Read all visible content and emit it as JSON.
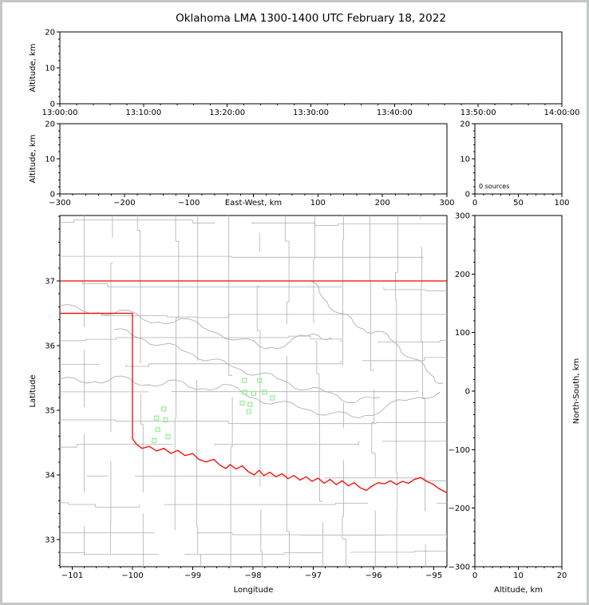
{
  "title": "Oklahoma LMA 1300-1400 UTC February 18, 2022",
  "colors": {
    "state_border": "#ff0000",
    "county_lines": "#b0b0b0",
    "station_marker": "#90ee90",
    "axis": "#000000",
    "frame": "#c3c7c7"
  },
  "panels": {
    "time_height": {
      "ylabel": "Altitude, km",
      "xlim": [
        0,
        3600
      ],
      "ylim": [
        0,
        20
      ],
      "xminor": 120,
      "yminor": 2,
      "xticks": [
        {
          "v": 0,
          "t": "13:00:00"
        },
        {
          "v": 600,
          "t": "13:10:00"
        },
        {
          "v": 1200,
          "t": "13:20:00"
        },
        {
          "v": 1800,
          "t": "13:30:00"
        },
        {
          "v": 2400,
          "t": "13:40:00"
        },
        {
          "v": 3000,
          "t": "13:50:00"
        },
        {
          "v": 3600,
          "t": "14:00:00"
        }
      ],
      "yticks": [
        {
          "v": 0,
          "t": "0"
        },
        {
          "v": 10,
          "t": "10"
        },
        {
          "v": 20,
          "t": "20"
        }
      ]
    },
    "ew_height": {
      "ylabel": "Altitude, km",
      "inline_xlabel": "East-West, km",
      "xlim": [
        -300,
        300
      ],
      "ylim": [
        0,
        20
      ],
      "xminor": 20,
      "yminor": 2,
      "xticks": [
        {
          "v": -300,
          "t": "−300"
        },
        {
          "v": -200,
          "t": "−200"
        },
        {
          "v": -100,
          "t": "−100"
        },
        {
          "v": 0,
          "t": ""
        },
        {
          "v": 100,
          "t": "100"
        },
        {
          "v": 200,
          "t": "200"
        },
        {
          "v": 300,
          "t": "300"
        }
      ],
      "yticks": [
        {
          "v": 0,
          "t": "0"
        },
        {
          "v": 10,
          "t": "10"
        },
        {
          "v": 20,
          "t": "20"
        }
      ]
    },
    "histogram": {
      "annotation": "0 sources",
      "xlim": [
        0,
        100
      ],
      "ylim": [
        0,
        20
      ],
      "xminor": 10,
      "yminor": 2,
      "xticks": [
        {
          "v": 0,
          "t": "0"
        },
        {
          "v": 50,
          "t": "50"
        },
        {
          "v": 100,
          "t": "100"
        }
      ],
      "yticks": [
        {
          "v": 0,
          "t": "0"
        },
        {
          "v": 10,
          "t": "10"
        },
        {
          "v": 20,
          "t": "20"
        }
      ]
    },
    "map": {
      "xlabel": "Longitude",
      "ylabel": "Latitude",
      "xlim": [
        -101.205,
        -94.783
      ],
      "ylim": [
        32.58,
        38.012
      ],
      "xminor": 0.2,
      "yminor": 0.2,
      "xticks": [
        {
          "v": -101,
          "t": "−101"
        },
        {
          "v": -100,
          "t": "−100"
        },
        {
          "v": -99,
          "t": "−99"
        },
        {
          "v": -98,
          "t": "−98"
        },
        {
          "v": -97,
          "t": "−97"
        },
        {
          "v": -96,
          "t": "−96"
        },
        {
          "v": -95,
          "t": "−95"
        }
      ],
      "yticks": [
        {
          "v": 33,
          "t": "33"
        },
        {
          "v": 34,
          "t": "34"
        },
        {
          "v": 35,
          "t": "35"
        },
        {
          "v": 36,
          "t": "36"
        },
        {
          "v": 37,
          "t": "37"
        }
      ]
    },
    "ns_height": {
      "xlabel": "Altitude, km",
      "ylabel_right": "North-South, km",
      "xlim": [
        0,
        20
      ],
      "ylim": [
        -300,
        300
      ],
      "xminor": 2,
      "yminor": 20,
      "xticks": [
        {
          "v": 0,
          "t": "0"
        },
        {
          "v": 10,
          "t": "10"
        },
        {
          "v": 20,
          "t": "20"
        }
      ],
      "yticks": [
        {
          "v": 300,
          "t": "300"
        },
        {
          "v": 200,
          "t": "200"
        },
        {
          "v": 100,
          "t": "100"
        },
        {
          "v": 0,
          "t": "0"
        },
        {
          "v": -100,
          "t": "−100"
        },
        {
          "v": -200,
          "t": "−200"
        },
        {
          "v": -300,
          "t": "−300"
        }
      ]
    }
  },
  "map_features": {
    "state_border": {
      "north": [
        [
          -101.205,
          37.0
        ],
        [
          -94.783,
          37.0
        ]
      ],
      "panhandle": [
        [
          -101.205,
          36.5
        ],
        [
          -100.0,
          36.5
        ],
        [
          -100.0,
          34.56
        ]
      ],
      "red_river": [
        [
          -100.0,
          34.56
        ],
        [
          -99.93,
          34.47
        ],
        [
          -99.84,
          34.41
        ],
        [
          -99.72,
          34.44
        ],
        [
          -99.6,
          34.37
        ],
        [
          -99.48,
          34.41
        ],
        [
          -99.36,
          34.33
        ],
        [
          -99.25,
          34.38
        ],
        [
          -99.13,
          34.3
        ],
        [
          -99.0,
          34.33
        ],
        [
          -98.9,
          34.24
        ],
        [
          -98.78,
          34.2
        ],
        [
          -98.65,
          34.24
        ],
        [
          -98.55,
          34.15
        ],
        [
          -98.45,
          34.1
        ],
        [
          -98.38,
          34.16
        ],
        [
          -98.28,
          34.09
        ],
        [
          -98.18,
          34.14
        ],
        [
          -98.08,
          34.05
        ],
        [
          -97.98,
          34.0
        ],
        [
          -97.9,
          34.07
        ],
        [
          -97.82,
          33.99
        ],
        [
          -97.72,
          34.04
        ],
        [
          -97.62,
          33.97
        ],
        [
          -97.52,
          34.02
        ],
        [
          -97.42,
          33.94
        ],
        [
          -97.32,
          33.99
        ],
        [
          -97.22,
          33.92
        ],
        [
          -97.12,
          33.97
        ],
        [
          -97.02,
          33.9
        ],
        [
          -96.92,
          33.95
        ],
        [
          -96.82,
          33.87
        ],
        [
          -96.72,
          33.93
        ],
        [
          -96.62,
          33.85
        ],
        [
          -96.52,
          33.91
        ],
        [
          -96.42,
          33.83
        ],
        [
          -96.32,
          33.88
        ],
        [
          -96.22,
          33.8
        ],
        [
          -96.12,
          33.76
        ],
        [
          -96.02,
          33.83
        ],
        [
          -95.92,
          33.88
        ],
        [
          -95.82,
          33.86
        ],
        [
          -95.72,
          33.91
        ],
        [
          -95.62,
          33.85
        ],
        [
          -95.52,
          33.9
        ],
        [
          -95.42,
          33.87
        ],
        [
          -95.32,
          33.93
        ],
        [
          -95.22,
          33.96
        ],
        [
          -95.12,
          33.9
        ],
        [
          -95.02,
          33.86
        ],
        [
          -94.92,
          33.79
        ],
        [
          -94.82,
          33.74
        ],
        [
          -94.77,
          33.72
        ]
      ]
    },
    "rivers": {
      "cimarron": [
        [
          -101.205,
          36.62
        ],
        [
          -100.7,
          36.5
        ],
        [
          -100.2,
          36.55
        ],
        [
          -99.7,
          36.35
        ],
        [
          -99.2,
          36.42
        ],
        [
          -98.7,
          36.22
        ],
        [
          -98.2,
          36.1
        ],
        [
          -97.8,
          35.95
        ],
        [
          -97.4,
          36.05
        ],
        [
          -97.0,
          36.18
        ],
        [
          -96.7,
          36.12
        ]
      ],
      "north_canadian": [
        [
          -100.3,
          36.25
        ],
        [
          -99.9,
          36.12
        ],
        [
          -99.5,
          36.02
        ],
        [
          -99.1,
          35.9
        ],
        [
          -98.7,
          35.78
        ],
        [
          -98.3,
          35.66
        ],
        [
          -97.9,
          35.56
        ],
        [
          -97.5,
          35.46
        ],
        [
          -97.1,
          35.32
        ],
        [
          -96.7,
          35.27
        ],
        [
          -96.3,
          35.12
        ],
        [
          -95.9,
          35.2
        ]
      ],
      "canadian": [
        [
          -101.205,
          35.48
        ],
        [
          -100.75,
          35.42
        ],
        [
          -100.3,
          35.52
        ],
        [
          -99.85,
          35.38
        ],
        [
          -99.4,
          35.46
        ],
        [
          -98.95,
          35.32
        ],
        [
          -98.5,
          35.4
        ],
        [
          -98.05,
          35.2
        ],
        [
          -97.6,
          35.12
        ],
        [
          -97.15,
          35.02
        ],
        [
          -96.7,
          34.95
        ],
        [
          -96.25,
          34.88
        ],
        [
          -95.8,
          35.05
        ],
        [
          -95.35,
          35.18
        ],
        [
          -94.9,
          35.28
        ]
      ],
      "arkansas": [
        [
          -97.05,
          37.0
        ],
        [
          -96.85,
          36.75
        ],
        [
          -96.55,
          36.5
        ],
        [
          -96.25,
          36.28
        ],
        [
          -95.95,
          36.22
        ],
        [
          -95.65,
          36.05
        ],
        [
          -95.35,
          35.8
        ],
        [
          -95.05,
          35.55
        ],
        [
          -94.85,
          35.42
        ]
      ]
    },
    "counties": {
      "seed": 11,
      "style": "procedural county-line lattice",
      "color": "#b0b0b0"
    }
  },
  "chart_data": [
    {
      "type": "scatter",
      "panel": "altitude-vs-time",
      "ylabel": "Altitude, km",
      "x_ticklabels": [
        "13:00:00",
        "13:10:00",
        "13:20:00",
        "13:30:00",
        "13:40:00",
        "13:50:00",
        "14:00:00"
      ],
      "ylim": [
        0,
        20
      ],
      "points": []
    },
    {
      "type": "scatter",
      "panel": "altitude-vs-east-west",
      "xlabel": "East-West, km",
      "ylabel": "Altitude, km",
      "xlim": [
        -300,
        300
      ],
      "ylim": [
        0,
        20
      ],
      "points": []
    },
    {
      "type": "histogram",
      "panel": "source-count-by-altitude",
      "annotation": "0 sources",
      "xlim": [
        0,
        100
      ],
      "ylim": [
        0,
        20
      ],
      "values": []
    },
    {
      "type": "scatter",
      "panel": "plan-view-map",
      "xlabel": "Longitude",
      "ylabel": "Latitude",
      "xlim": [
        -101.2,
        -94.78
      ],
      "ylim": [
        32.58,
        38.01
      ],
      "points": [],
      "stations": [
        [
          -98.14,
          35.46
        ],
        [
          -97.89,
          35.46
        ],
        [
          -98.14,
          35.28
        ],
        [
          -97.99,
          35.26
        ],
        [
          -97.81,
          35.28
        ],
        [
          -97.68,
          35.19
        ],
        [
          -98.18,
          35.11
        ],
        [
          -98.05,
          35.09
        ],
        [
          -98.07,
          34.98
        ],
        [
          -99.48,
          35.02
        ],
        [
          -99.6,
          34.88
        ],
        [
          -99.45,
          34.85
        ],
        [
          -99.58,
          34.7
        ],
        [
          -99.41,
          34.59
        ],
        [
          -99.64,
          34.53
        ]
      ]
    },
    {
      "type": "scatter",
      "panel": "altitude-vs-north-south",
      "xlabel": "Altitude, km",
      "ylabel": "North-South, km",
      "xlim": [
        0,
        20
      ],
      "ylim": [
        -300,
        300
      ],
      "points": []
    }
  ]
}
